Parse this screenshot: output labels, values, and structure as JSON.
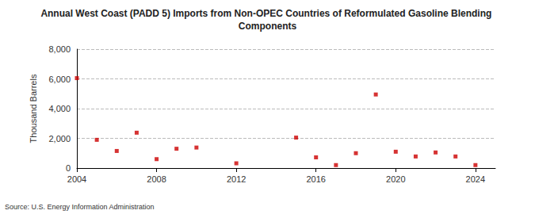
{
  "chart_data": {
    "type": "scatter",
    "title": "Annual West Coast (PADD 5) Imports from Non-OPEC Countries of Reformulated Gasoline Blending Components",
    "y_label": "Thousand Barrels",
    "source": "Source: U.S. Energy Information Administration",
    "x": [
      2004,
      2005,
      2006,
      2007,
      2008,
      2009,
      2010,
      2012,
      2015,
      2016,
      2017,
      2018,
      2019,
      2020,
      2021,
      2022,
      2023,
      2024
    ],
    "values": [
      6050,
      1900,
      1150,
      2380,
      600,
      1300,
      1380,
      320,
      2050,
      720,
      200,
      1000,
      4950,
      1100,
      780,
      1050,
      780,
      200
    ],
    "color": "#cc0000",
    "marker": "square",
    "xlim": [
      2004,
      2025
    ],
    "xticks": [
      2004,
      2008,
      2012,
      2016,
      2020,
      2024
    ],
    "ylim": [
      0,
      8000
    ],
    "yticks": [
      0,
      {
        "value": 2000,
        "label": "2,000"
      },
      {
        "value": 4000,
        "label": "4,000"
      },
      {
        "value": 6000,
        "label": "6,000"
      },
      {
        "value": 8000,
        "label": "8,000"
      }
    ],
    "grid": true
  }
}
